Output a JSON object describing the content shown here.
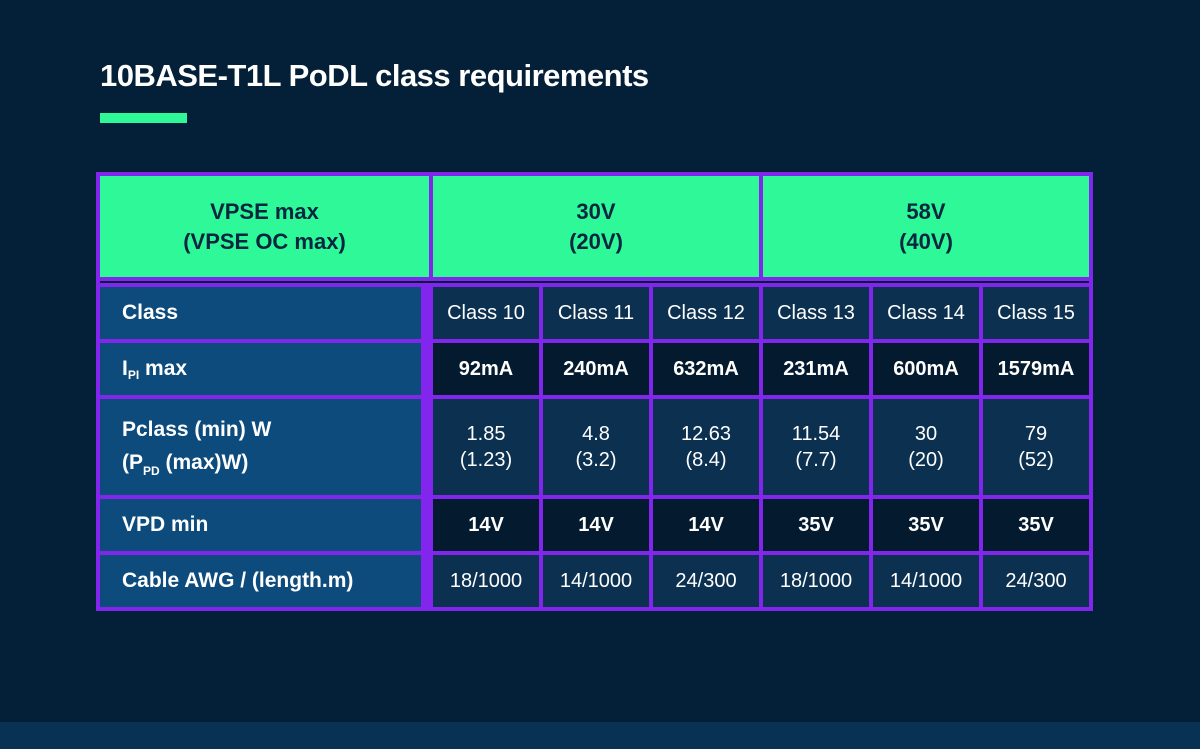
{
  "page": {
    "title": "10BASE-T1L PoDL class requirements"
  },
  "colors": {
    "background": "#042038",
    "footer_strip": "#083154",
    "accent_green": "#2FF898",
    "border_purple": "#8226EE",
    "label_cell_blue": "#0C4B7C",
    "data_cell_light": "#0C3150",
    "data_cell_dark": "#041B2F",
    "header_text_navy": "#04263F",
    "text_white": "#FFFFFF"
  },
  "table": {
    "header": [
      {
        "text": "VPSE max\n(VPSE OC max)"
      },
      {
        "text": "30V\n(20V)"
      },
      {
        "text": "58V\n(40V)"
      }
    ],
    "rows": [
      {
        "label": "Class",
        "values": [
          "Class 10",
          "Class 11",
          "Class 12",
          "Class 13",
          "Class 14",
          "Class 15"
        ]
      },
      {
        "label_pre": "I",
        "label_sub": "PI",
        "label_post": " max",
        "values": [
          "92mA",
          "240mA",
          "632mA",
          "231mA",
          "600mA",
          "1579mA"
        ]
      },
      {
        "label_line1": "Pclass (min) W",
        "label2_pre": "(P",
        "label2_sub": "PD",
        "label2_post": " (max)W)",
        "values": [
          "1.85\n(1.23)",
          "4.8\n(3.2)",
          "12.63\n(8.4)",
          "11.54\n(7.7)",
          "30\n(20)",
          "79\n(52)"
        ]
      },
      {
        "label": "VPD min",
        "values": [
          "14V",
          "14V",
          "14V",
          "35V",
          "35V",
          "35V"
        ]
      },
      {
        "label": "Cable AWG / (length.m)",
        "values": [
          "18/1000",
          "14/1000",
          "24/300",
          "18/1000",
          "14/1000",
          "24/300"
        ]
      }
    ]
  }
}
